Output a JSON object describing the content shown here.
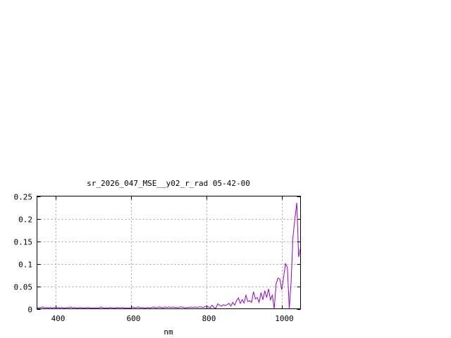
{
  "chart_data": {
    "type": "line",
    "title": "sr_2026_047_MSE__y02_r_rad 05-42-00",
    "xlabel": "nm",
    "ylabel": "",
    "xlim": [
      350,
      1050
    ],
    "ylim": [
      0,
      0.25
    ],
    "xticks": [
      400,
      600,
      800,
      1000
    ],
    "xtick_labels": [
      "400",
      "600",
      "800",
      "1000"
    ],
    "yticks": [
      0,
      0.05,
      0.1,
      0.15,
      0.2,
      0.25
    ],
    "ytick_labels": [
      "0",
      "0.05",
      "0.1",
      "0.15",
      "0.2",
      "0.25"
    ],
    "grid": true,
    "line_color": "#9400d3",
    "series": [
      {
        "x": [
          350,
          355,
          360,
          365,
          370,
          375,
          380,
          385,
          390,
          395,
          400,
          405,
          410,
          415,
          420,
          425,
          430,
          435,
          440,
          445,
          450,
          455,
          460,
          465,
          470,
          475,
          480,
          485,
          490,
          495,
          500,
          505,
          510,
          515,
          520,
          525,
          530,
          535,
          540,
          545,
          550,
          555,
          560,
          565,
          570,
          575,
          580,
          585,
          590,
          595,
          600,
          605,
          610,
          615,
          620,
          625,
          630,
          635,
          640,
          645,
          650,
          655,
          660,
          665,
          670,
          675,
          680,
          685,
          690,
          695,
          700,
          705,
          710,
          715,
          720,
          725,
          730,
          735,
          740,
          745,
          750,
          755,
          760,
          765,
          770,
          775,
          780,
          785,
          790,
          795,
          800,
          805,
          810,
          815,
          820,
          825,
          830,
          835,
          840,
          845,
          850,
          855,
          860,
          865,
          870,
          875,
          880,
          885,
          890,
          895,
          900,
          905,
          910,
          915,
          920,
          925,
          930,
          935,
          940,
          945,
          950,
          955,
          960,
          965,
          970,
          975,
          980,
          985,
          990,
          995,
          1000,
          1005,
          1010,
          1015,
          1020,
          1025,
          1030,
          1035,
          1040,
          1045,
          1050
        ],
        "y": [
          0.003,
          0.002,
          0.003,
          0.004,
          0.002,
          0.003,
          0.002,
          0.003,
          0.002,
          0.003,
          0.002,
          0.003,
          0.002,
          0.003,
          0.002,
          0.002,
          0.003,
          0.002,
          0.004,
          0.002,
          0.003,
          0.002,
          0.002,
          0.003,
          0.002,
          0.002,
          0.002,
          0.003,
          0.002,
          0.002,
          0.002,
          0.002,
          0.002,
          0.002,
          0.004,
          0.002,
          0.002,
          0.002,
          0.002,
          0.003,
          0.002,
          0.002,
          0.002,
          0.003,
          0.002,
          0.003,
          0.002,
          0.002,
          0.002,
          0.002,
          0.002,
          0.004,
          0.002,
          0.003,
          0.004,
          0.002,
          0.003,
          0.002,
          0.002,
          0.003,
          0.002,
          0.003,
          0.004,
          0.002,
          0.003,
          0.004,
          0.003,
          0.002,
          0.004,
          0.003,
          0.004,
          0.003,
          0.004,
          0.003,
          0.003,
          0.002,
          0.004,
          0.004,
          0.003,
          0.002,
          0.003,
          0.003,
          0.004,
          0.003,
          0.004,
          0.003,
          0.004,
          0.004,
          0.003,
          0.004,
          0.006,
          0.004,
          0.002,
          0.008,
          0.003,
          0.001,
          0.011,
          0.008,
          0.006,
          0.009,
          0.007,
          0.009,
          0.012,
          0.006,
          0.014,
          0.008,
          0.018,
          0.024,
          0.012,
          0.02,
          0.013,
          0.03,
          0.016,
          0.018,
          0.014,
          0.038,
          0.022,
          0.025,
          0.014,
          0.036,
          0.02,
          0.04,
          0.025,
          0.044,
          0.02,
          0.03,
          0.0,
          0.055,
          0.068,
          0.066,
          0.042,
          0.07,
          0.1,
          0.092,
          0.0,
          0.06,
          0.16,
          0.2,
          0.235,
          0.115,
          0.135
        ]
      }
    ]
  }
}
